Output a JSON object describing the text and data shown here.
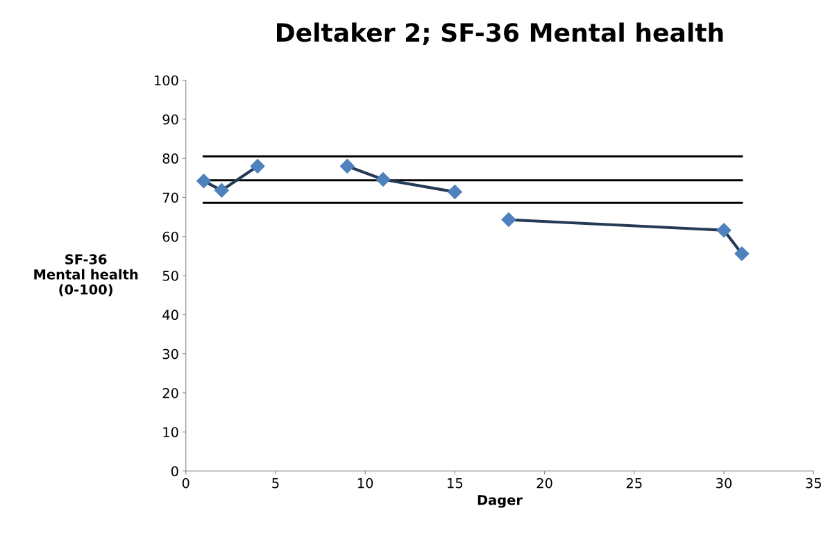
{
  "chart_data": {
    "type": "line",
    "title": "Deltaker 2; SF-36 Mental health",
    "xlabel": "Dager",
    "ylabel": "SF-36\nMental health\n(0-100)",
    "series": [
      {
        "color": "#4f81bd",
        "x": [
          1,
          2,
          4
        ],
        "values": [
          74.2,
          71.8,
          78
        ]
      },
      {
        "color": "#4f81bd",
        "x": [
          9,
          11,
          15
        ],
        "values": [
          78,
          74.6,
          71.4
        ]
      },
      {
        "color": "#4f81bd",
        "x": [
          18,
          30,
          31
        ],
        "values": [
          64.3,
          61.6,
          55.6
        ]
      }
    ],
    "marker": "diamond",
    "line_style": "solid",
    "ref_lines": [
      {
        "axis": "y",
        "value": 80.5,
        "color": "#000000"
      },
      {
        "axis": "y",
        "value": 74.4,
        "color": "#000000"
      },
      {
        "axis": "y",
        "value": 68.6,
        "color": "#000000"
      }
    ],
    "xlim": [
      0,
      35
    ],
    "xticks": [
      0,
      5,
      10,
      15,
      20,
      25,
      30,
      35
    ],
    "ylim": [
      0,
      100
    ],
    "yticks": [
      0,
      10,
      20,
      30,
      40,
      50,
      60,
      70,
      80,
      90,
      100
    ],
    "grid": false,
    "legend": false
  }
}
